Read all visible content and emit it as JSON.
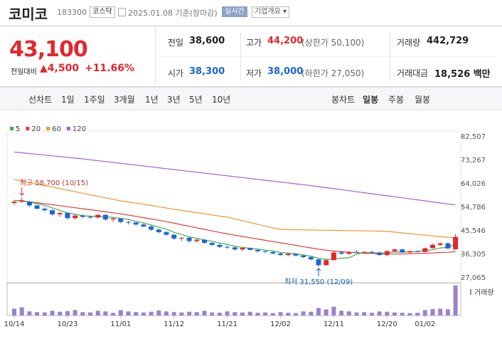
{
  "header": {
    "name": "코미코",
    "code": "183300",
    "market": "코스닥",
    "date": "2025.01.08 기준(장마감)",
    "realtime": "실시간",
    "company": "기업개요"
  },
  "quote": {
    "price": "43,100",
    "change_label": "전일대비",
    "change": "4,500",
    "change_rate": "+11.66%",
    "rows": [
      [
        {
          "label": "전일",
          "value": "38,600"
        },
        {
          "label": "고가",
          "value": "44,200",
          "note": "(상한가 50,100)"
        },
        {
          "label": "거래량",
          "value": "442,729"
        }
      ],
      [
        {
          "label": "시가",
          "value": "38,300"
        },
        {
          "label": "저가",
          "value": "38,000",
          "note": "(하한가 27,050)"
        },
        {
          "label": "거래대금",
          "value": "18,526 백만"
        }
      ]
    ]
  },
  "tabs": {
    "line_label": "선차트",
    "line": [
      "1일",
      "1주일",
      "3개월",
      "1년",
      "3년",
      "5년",
      "10년"
    ],
    "candle_label": "봉차트",
    "candle": [
      "일봉",
      "주봉",
      "월봉"
    ]
  },
  "chart_data": {
    "type": "candlestick",
    "x": [
      "10/14",
      null,
      null,
      null,
      null,
      null,
      null,
      "10/23",
      null,
      null,
      null,
      null,
      null,
      null,
      "11/01",
      null,
      null,
      null,
      null,
      null,
      null,
      "11/12",
      null,
      null,
      null,
      null,
      null,
      null,
      "11/21",
      null,
      null,
      null,
      null,
      null,
      null,
      "12/02",
      null,
      null,
      null,
      null,
      null,
      null,
      "12/11",
      null,
      null,
      null,
      null,
      null,
      null,
      "12/20",
      null,
      null,
      null,
      null,
      "01/02",
      null,
      null,
      null,
      null
    ],
    "open": [
      56500,
      57000,
      57000,
      55500,
      54200,
      53600,
      52000,
      52500,
      50500,
      51500,
      51000,
      50800,
      51800,
      50000,
      50400,
      49000,
      48800,
      48000,
      47200,
      46000,
      45000,
      44000,
      42500,
      42800,
      41500,
      42000,
      40800,
      40000,
      39200,
      39000,
      38200,
      38800,
      38000,
      37500,
      37200,
      36600,
      36000,
      36500,
      35800,
      35200,
      34300,
      32000,
      34000,
      37000,
      36500,
      37200,
      37000,
      37200,
      37000,
      36000,
      37500,
      38200,
      37000,
      37500,
      37200,
      38700,
      40000,
      40600,
      38300
    ],
    "high": [
      57500,
      58700,
      57200,
      55800,
      54800,
      54000,
      53000,
      52800,
      52000,
      52000,
      51500,
      52000,
      52000,
      50800,
      50600,
      49500,
      49000,
      48500,
      47800,
      46500,
      45500,
      44200,
      43000,
      43000,
      42500,
      42200,
      41000,
      40500,
      39800,
      39500,
      39000,
      39000,
      38500,
      38000,
      37500,
      37000,
      36800,
      36800,
      36000,
      35500,
      34500,
      34500,
      37500,
      37800,
      37500,
      38000,
      37500,
      37800,
      37300,
      38000,
      38500,
      38500,
      37800,
      37800,
      38900,
      40500,
      41000,
      41000,
      44200
    ],
    "low": [
      55800,
      56500,
      55000,
      54000,
      53200,
      51500,
      51000,
      50000,
      50000,
      50500,
      50200,
      50300,
      49500,
      49000,
      48500,
      48000,
      47500,
      47000,
      45500,
      44500,
      43500,
      42000,
      41500,
      41000,
      41000,
      40500,
      39500,
      38800,
      38500,
      37800,
      37500,
      37800,
      37000,
      36800,
      36300,
      35800,
      35500,
      35500,
      34800,
      34000,
      31550,
      31800,
      33800,
      36200,
      36000,
      36800,
      36500,
      36800,
      35800,
      35500,
      37200,
      36800,
      36500,
      37000,
      37200,
      38500,
      39500,
      38400,
      38000
    ],
    "close": [
      57000,
      57500,
      55500,
      54200,
      53600,
      52000,
      52500,
      50500,
      51500,
      51000,
      50800,
      51800,
      50000,
      50400,
      49000,
      48800,
      48000,
      47200,
      46000,
      45000,
      44000,
      42500,
      42800,
      41500,
      42000,
      40800,
      40000,
      39200,
      39000,
      38200,
      38800,
      38000,
      37500,
      37200,
      36600,
      36000,
      36500,
      35800,
      35200,
      34300,
      32000,
      34000,
      37000,
      36500,
      37200,
      37000,
      37200,
      37000,
      36000,
      37500,
      38200,
      37000,
      37500,
      37200,
      38700,
      40000,
      40600,
      38600,
      43100
    ],
    "up_color": "#e3262d",
    "down_color": "#1a67d2",
    "series": [
      {
        "name": "5",
        "color": "#3fae49",
        "values": [
          57500,
          57400,
          56900,
          56200,
          55560,
          54560,
          53560,
          52560,
          52020,
          51500,
          51260,
          51120,
          51020,
          50800,
          50400,
          50000,
          49240,
          48680,
          47800,
          47000,
          46160,
          44940,
          44060,
          43160,
          42560,
          41920,
          41420,
          40700,
          40200,
          39440,
          39040,
          38640,
          38300,
          37940,
          37620,
          37060,
          36760,
          36420,
          36020,
          35560,
          34760,
          34260,
          34500,
          34760,
          34940,
          36340,
          36980,
          36980,
          36680,
          36940,
          37180,
          37140,
          37240,
          37480,
          37720,
          38080,
          38800,
          39020,
          40200
        ]
      },
      {
        "name": "20",
        "color": "#e0403a",
        "values": [
          57500,
          57200,
          56900,
          56600,
          56200,
          55800,
          55400,
          55000,
          54600,
          54200,
          53800,
          53400,
          53000,
          52600,
          52200,
          51700,
          51200,
          50700,
          50200,
          49700,
          49100,
          48500,
          47900,
          47300,
          46700,
          46100,
          45500,
          44900,
          44300,
          43800,
          43300,
          42800,
          42300,
          41800,
          41300,
          40800,
          40300,
          39800,
          39300,
          38800,
          38300,
          37900,
          37600,
          37300,
          37100,
          36900,
          36700,
          36600,
          36500,
          36400,
          36400,
          36400,
          36500,
          36600,
          36700,
          36800,
          37000,
          37100,
          37300
        ]
      },
      {
        "name": "60",
        "color": "#f0962e",
        "values": [
          65700,
          65100,
          64500,
          63900,
          63300,
          62700,
          62100,
          61500,
          60900,
          60300,
          59700,
          59100,
          58500,
          57900,
          57300,
          56850,
          56400,
          55950,
          55500,
          55000,
          54500,
          54000,
          53550,
          53100,
          52650,
          52200,
          51750,
          51300,
          50900,
          50200,
          49500,
          48800,
          48100,
          47400,
          46700,
          46100,
          46000,
          45950,
          45900,
          45850,
          45800,
          45750,
          45700,
          45650,
          45600,
          45550,
          45500,
          45450,
          45400,
          45300,
          45000,
          44700,
          44400,
          44100,
          43800,
          43500,
          43200,
          43000,
          42800
        ]
      },
      {
        "name": "120",
        "color": "#a262d6",
        "values": [
          76500,
          76200,
          75900,
          75600,
          75300,
          75000,
          74700,
          74400,
          74100,
          73800,
          73450,
          73100,
          72750,
          72400,
          72050,
          71700,
          71350,
          71000,
          70650,
          70300,
          69950,
          69600,
          69250,
          68900,
          68550,
          68200,
          67850,
          67500,
          67150,
          66800,
          66450,
          66100,
          65750,
          65400,
          65050,
          64700,
          64350,
          64000,
          63650,
          63300,
          62900,
          62500,
          62100,
          61700,
          61300,
          60900,
          60500,
          60100,
          59700,
          59300,
          58900,
          58500,
          58100,
          57700,
          57300,
          56900,
          56500,
          56100,
          55700
        ]
      }
    ],
    "volume": {
      "name": "거래량",
      "color": "#9a82cc",
      "ylim": [
        0,
        450000
      ],
      "values": [
        100000,
        120000,
        60000,
        50000,
        45000,
        70000,
        55000,
        65000,
        80000,
        50000,
        45000,
        70000,
        60000,
        40000,
        80000,
        60000,
        50000,
        45000,
        55000,
        75000,
        60000,
        50000,
        45000,
        55000,
        50000,
        70000,
        45000,
        40000,
        60000,
        50000,
        45000,
        55000,
        40000,
        45000,
        35000,
        50000,
        40000,
        35000,
        60000,
        55000,
        110000,
        90000,
        130000,
        70000,
        60000,
        45000,
        50000,
        40000,
        60000,
        55000,
        45000,
        40000,
        35000,
        40000,
        80000,
        95000,
        100000,
        90000,
        442729
      ]
    },
    "ylim": [
      27065,
      82507
    ],
    "yticks": [
      {
        "value": 27065,
        "label": "27,065"
      },
      {
        "value": 36305,
        "label": "36,305"
      },
      {
        "value": 45546,
        "label": "45,546"
      },
      {
        "value": 54786,
        "label": "54,786"
      },
      {
        "value": 64026,
        "label": "64,026"
      },
      {
        "value": 73267,
        "label": "73,267"
      },
      {
        "value": 82507,
        "label": "82,507"
      }
    ],
    "annotations": {
      "high": "최고 58,700 (10/15)",
      "low": "최저 31,550 (12/09)"
    }
  }
}
